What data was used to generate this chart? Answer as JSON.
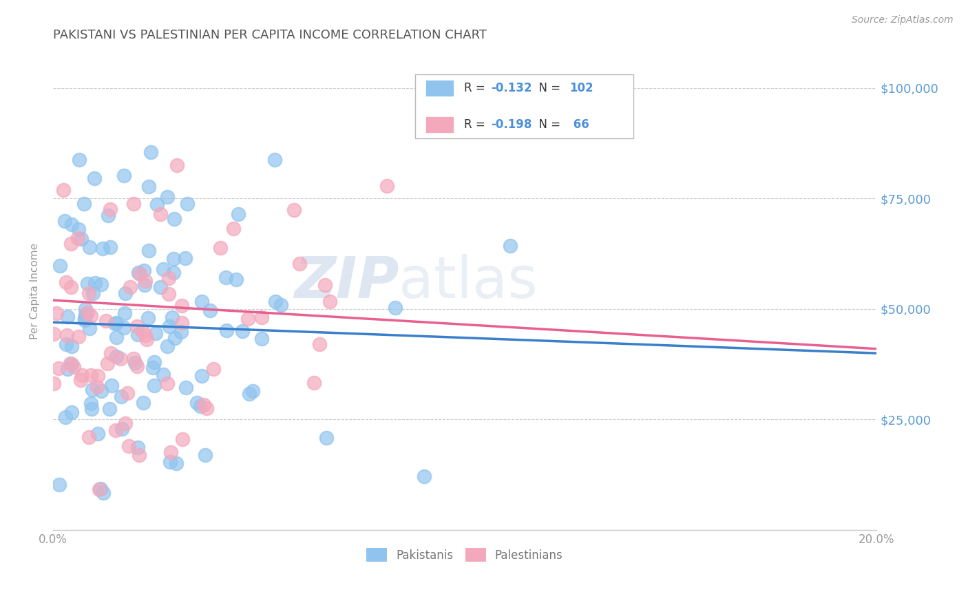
{
  "title": "PAKISTANI VS PALESTINIAN PER CAPITA INCOME CORRELATION CHART",
  "source": "Source: ZipAtlas.com",
  "ylabel": "Per Capita Income",
  "y_ticks": [
    0,
    25000,
    50000,
    75000,
    100000
  ],
  "y_tick_labels": [
    "",
    "$25,000",
    "$50,000",
    "$75,000",
    "$100,000"
  ],
  "x_min": 0.0,
  "x_max": 0.2,
  "y_min": 0,
  "y_max": 108000,
  "pakistani_color": "#90C4EE",
  "palestinian_color": "#F4A8BC",
  "pakistani_line_color": "#3A7FCC",
  "palestinian_line_color": "#E86090",
  "background_color": "#FFFFFF",
  "title_color": "#555555",
  "axis_label_color": "#5B9BD5",
  "legend_text_color": "#4A90D9",
  "pakistani_R": -0.132,
  "pakistani_N": 102,
  "palestinian_R": -0.198,
  "palestinian_N": 66,
  "pak_intercept": 47000,
  "pak_slope": -35000,
  "pal_intercept": 52000,
  "pal_slope": -55000,
  "seed_pak": 42,
  "seed_pal": 77
}
